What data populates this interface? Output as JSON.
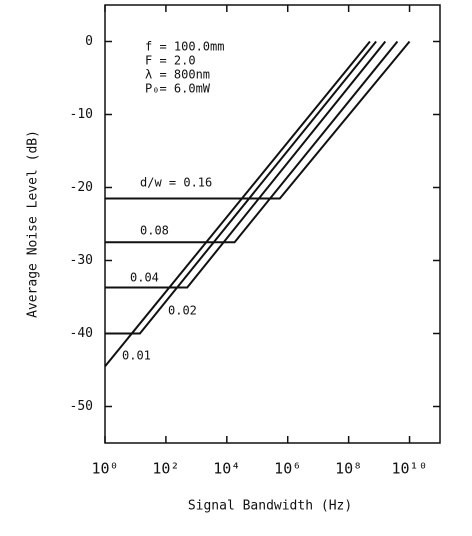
{
  "chart_data": {
    "type": "line",
    "xlabel": "Signal Bandwidth  (Hz)",
    "ylabel": "Average Noise Level  (dB)",
    "xscale": "log",
    "xlim": [
      1,
      100000000000
    ],
    "ylim": [
      -55,
      5
    ],
    "xticks": [
      {
        "value": 1,
        "label": "10⁰"
      },
      {
        "value": 100,
        "label": "10²"
      },
      {
        "value": 10000,
        "label": "10⁴"
      },
      {
        "value": 1000000,
        "label": "10⁶"
      },
      {
        "value": 100000000,
        "label": "10⁸"
      },
      {
        "value": 10000000000,
        "label": "10¹⁰"
      }
    ],
    "yticks": [
      0,
      -10,
      -20,
      -30,
      -40,
      -50
    ],
    "annotations": [
      "f = 100.0mm",
      "F = 2.0",
      "λ = 800nm",
      "P₀= 6.0mW"
    ],
    "series": [
      {
        "name": "d/w = 0.16",
        "color": "#111111",
        "x": [
          1,
          550000,
          10000000000
        ],
        "values": [
          -21.5,
          -21.5,
          0
        ]
      },
      {
        "name": "0.08",
        "color": "#111111",
        "x": [
          1,
          18000,
          4000000000
        ],
        "values": [
          -27.5,
          -27.5,
          0
        ]
      },
      {
        "name": "0.04",
        "color": "#111111",
        "x": [
          1,
          500,
          1600000000
        ],
        "values": [
          -33.7,
          -33.7,
          0
        ]
      },
      {
        "name": "0.02",
        "color": "#111111",
        "x": [
          1,
          14,
          800000000
        ],
        "values": [
          -40,
          -40,
          0
        ]
      },
      {
        "name": "0.01",
        "color": "#111111",
        "x": [
          1,
          500000000
        ],
        "values": [
          -44.5,
          0
        ]
      }
    ]
  }
}
